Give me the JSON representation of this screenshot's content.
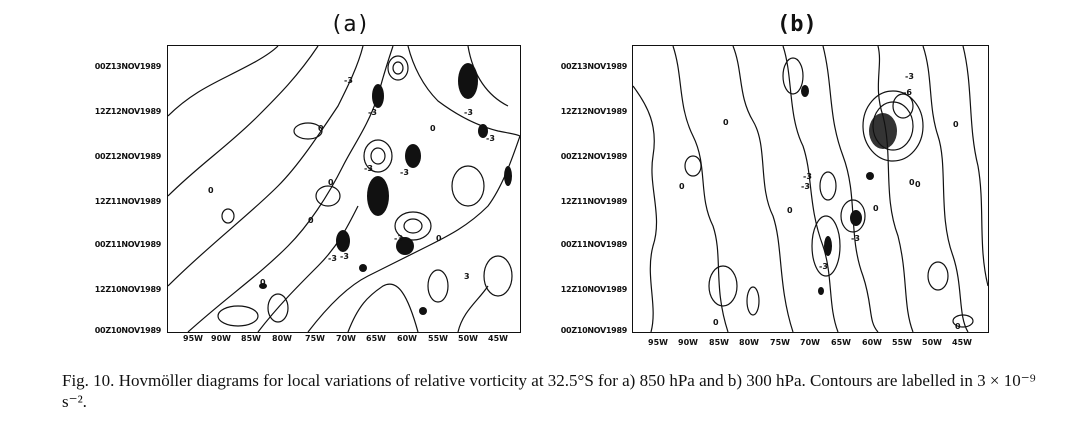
{
  "figure": {
    "panel_a": {
      "label": "(a)",
      "y_ticks": [
        "00Z13NOV1989",
        "12Z12NOV1989",
        "00Z12NOV1989",
        "12Z11NOV1989",
        "00Z11NOV1989",
        "12Z10NOV1989",
        "00Z10NOV1989"
      ],
      "x_ticks": [
        "95W",
        "90W",
        "85W",
        "80W",
        "75W",
        "70W",
        "65W",
        "60W",
        "55W",
        "50W",
        "45W"
      ],
      "contour_labels": [
        "-3",
        "-3",
        "0",
        "-3",
        "-3",
        "0",
        "-3",
        "0",
        "3",
        "-3",
        "0",
        "0",
        "-3",
        "0",
        "-3",
        "0",
        "-3"
      ]
    },
    "panel_b": {
      "label": "(b)",
      "y_ticks": [
        "00Z13NOV1989",
        "12Z12NOV1989",
        "00Z12NOV1989",
        "12Z11NOV1989",
        "00Z11NOV1989",
        "12Z10NOV1989",
        "00Z10NOV1989"
      ],
      "x_ticks": [
        "95W",
        "90W",
        "85W",
        "80W",
        "75W",
        "70W",
        "65W",
        "60W",
        "55W",
        "50W",
        "45W"
      ],
      "contour_labels": [
        "-3",
        "-6",
        "0",
        "0",
        "-3",
        "0",
        "-3",
        "0",
        "-3",
        "0",
        "0",
        "0",
        "-3",
        "0",
        "0"
      ]
    }
  },
  "caption": {
    "prefix": "Fig. 10.",
    "text": "Hovmöller diagrams for local variations of relative vorticity at 32.5°S for a) 850 hPa and b) 300 hPa. Contours are labelled in 3 × 10⁻⁹ s⁻²."
  }
}
